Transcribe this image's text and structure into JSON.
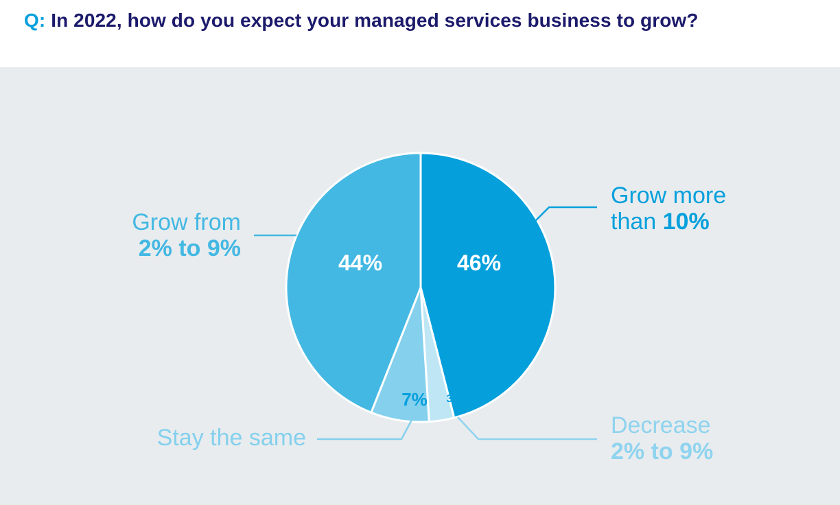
{
  "header": {
    "q_prefix": "Q:",
    "question": "In 2022, how do you expect your managed services business to grow?"
  },
  "chart_data": {
    "type": "pie",
    "title": "Q: In 2022, how do you expect your managed services business to grow?",
    "start_angle": "12 o'clock",
    "direction": "clockwise",
    "slices": [
      {
        "key": "grow_more",
        "label_line1": "Grow more",
        "label_line2_prefix": "than ",
        "label_line2_bold": "10%",
        "value": 46,
        "value_label": "46%",
        "color": "#05a0dc",
        "label_color": "#05a0dc",
        "value_color": "#ffffff"
      },
      {
        "key": "decrease",
        "label_line1": "Decrease",
        "label_line2_prefix": "",
        "label_line2_bold": "2% to 9%",
        "value": 3,
        "value_label": "3%",
        "color": "#bee6f5",
        "label_color": "#8fd3ef",
        "value_color": "#05a0dc"
      },
      {
        "key": "stay_same",
        "label_line1": "Stay the same",
        "label_line2_prefix": "",
        "label_line2_bold": "",
        "value": 7,
        "value_label": "7%",
        "color": "#84d0ed",
        "label_color": "#84d0ed",
        "value_color": "#05a0dc"
      },
      {
        "key": "grow_from",
        "label_line1": "Grow from",
        "label_line2_prefix": "",
        "label_line2_bold": "2% to 9%",
        "value": 44,
        "value_label": "44%",
        "color": "#43b8e2",
        "label_color": "#43b8e2",
        "value_color": "#ffffff"
      }
    ]
  }
}
